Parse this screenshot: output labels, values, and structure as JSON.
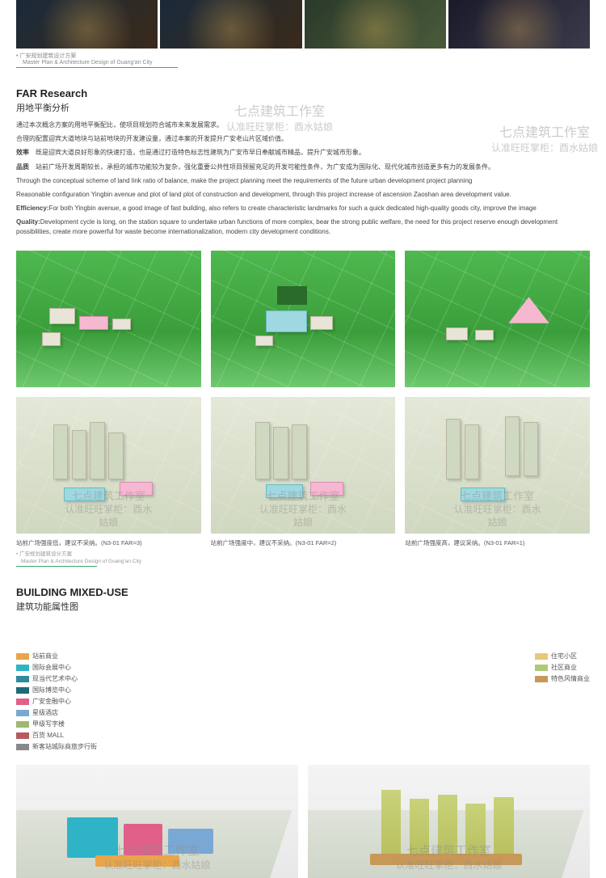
{
  "topFootnote": "广安规划建筑设计方案",
  "topFootnote2": "Master Plan & Architecture Design of Guang'an City",
  "farSection": {
    "title_en": "FAR Research",
    "title_cn": "用地平衡分析",
    "p1_cn": "通过本次概念方案的用地平衡配比，使项目规划符合城市未来发展需求。",
    "p2_cn": "合理的配置迎宾大道地块与站前地块的开发建设量，通过本案的开发提升广安老山片区域价值。",
    "p3_cn_label": "效率",
    "p3_cn": "既是迎宾大道良好形象的快速打造，也是通过打造特色标志性建筑为广安市早日奉献城市精品，提升广安城市形象。",
    "p4_cn_label": "品质",
    "p4_cn": "站前广场开发周期较长，承担的城市功能较为复杂，强化重要公共性项目预留充足的开发可能性条件，为广安成为国际化、现代化城市创造更多有力的发展条件。",
    "p5_en": "Through the conceptual scheme of land link ratio of balance, make the project planning meet the requirements of the future urban development project planning",
    "p6_en": "Reasonable configuration Yingbin avenue and plot of land plot of construction and development, through this project increase of ascension Zaoshan area development value.",
    "p7_en_label": "Efficiency:",
    "p7_en": "For both Yingbin avenue, a good image of fast building, also refers to create characteristic landmarks for such a quick dedicated high-quality goods city, improve the image",
    "p8_en_label": "Quality:",
    "p8_en": "Development cycle is long, on the station square to undertake urban functions of more complex, bear the strong public welfare, the need for this project reserve enough development possibilities, create more powerful for waste become internationalization, modern city development conditions."
  },
  "captions": {
    "c1": "站前广场强度低，建议不采纳。(N3-01 FAR=3)",
    "c2": "站前广场强度中，建议不采纳。(N3-01 FAR=2)",
    "c3": "站前广场强度高，建议采纳。(N3-01 FAR=1)",
    "foot": "广安规划建筑设计方案",
    "foot2": "Master Plan & Architecture Design of Guang'an City"
  },
  "mixedSection": {
    "title_en": "BUILDING MIXED-USE",
    "title_cn": "建筑功能属性图"
  },
  "legendLeft": [
    {
      "color": "#e8a54a",
      "label": "站前商业"
    },
    {
      "color": "#2fb3c7",
      "label": "国际会展中心"
    },
    {
      "color": "#2f8a9e",
      "label": "现当代艺术中心"
    },
    {
      "color": "#1f6a7a",
      "label": "国际博览中心"
    },
    {
      "color": "#e0608a",
      "label": "广安金融中心"
    },
    {
      "color": "#7aa8d4",
      "label": "星级酒店"
    },
    {
      "color": "#9fb870",
      "label": "甲级写字楼"
    },
    {
      "color": "#b85a60",
      "label": "百货 MALL"
    },
    {
      "color": "#888888",
      "label": "新客站城际商旅步行街"
    }
  ],
  "legendRight": [
    {
      "color": "#e8c878",
      "label": "住宅小区"
    },
    {
      "color": "#b0c878",
      "label": "社区商业"
    },
    {
      "color": "#c89858",
      "label": "特色风情商业"
    }
  ],
  "watermark": {
    "line1": "七点建筑工作室",
    "line2": "认准旺旺掌柜：酉水姑娘"
  }
}
